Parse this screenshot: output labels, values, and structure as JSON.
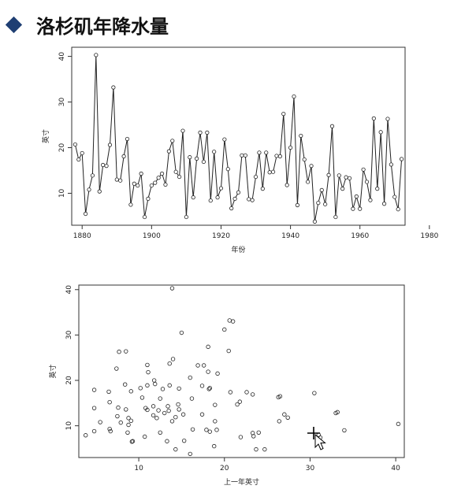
{
  "slide": {
    "title": "洛杉矶年降水量"
  },
  "chart_data": [
    {
      "type": "line",
      "title": "",
      "xlabel": "年份",
      "ylabel": "英寸",
      "xlim": [
        1877,
        1973
      ],
      "ylim": [
        3,
        42
      ],
      "xticks": [
        1880,
        1900,
        1920,
        1940,
        1960,
        1980
      ],
      "yticks": [
        10,
        20,
        30,
        40
      ],
      "grid": false,
      "series": [
        {
          "x": [
            1878,
            1879,
            1880,
            1881,
            1882,
            1883,
            1884,
            1885,
            1886,
            1887,
            1888,
            1889,
            1890,
            1891,
            1892,
            1893,
            1894,
            1895,
            1896,
            1897,
            1898,
            1899,
            1900,
            1901,
            1902,
            1903,
            1904,
            1905,
            1906,
            1907,
            1908,
            1909,
            1910,
            1911,
            1912,
            1913,
            1914,
            1915,
            1916,
            1917,
            1918,
            1919,
            1920,
            1921,
            1922,
            1923,
            1924,
            1925,
            1926,
            1927,
            1928,
            1929,
            1930,
            1931,
            1932,
            1933,
            1934,
            1935,
            1936,
            1937,
            1938,
            1939,
            1940,
            1941,
            1942,
            1943,
            1944,
            1945,
            1946,
            1947,
            1948,
            1949,
            1950,
            1951,
            1952,
            1953,
            1954,
            1955,
            1956,
            1957,
            1958,
            1959,
            1960,
            1961,
            1962,
            1963,
            1964,
            1965,
            1966,
            1967,
            1968,
            1969,
            1970,
            1971,
            1972
          ],
          "y": [
            20.7,
            17.4,
            18.8,
            5.5,
            10.8,
            13.9,
            40.3,
            10.4,
            16.2,
            16.0,
            20.6,
            33.2,
            13.0,
            12.8,
            18.1,
            21.9,
            7.5,
            12.1,
            11.7,
            14.3,
            4.8,
            8.8,
            11.7,
            12.3,
            13.4,
            14.3,
            11.9,
            19.2,
            21.5,
            14.7,
            13.6,
            23.7,
            4.8,
            17.9,
            9.1,
            17.6,
            23.3,
            16.9,
            23.3,
            8.4,
            19.1,
            9.1,
            11.1,
            21.8,
            15.3,
            6.7,
            8.8,
            10.2,
            18.3,
            18.3,
            8.7,
            8.5,
            13.6,
            18.9,
            11.0,
            18.9,
            14.6,
            14.7,
            18.2,
            18.1,
            27.4,
            11.8,
            20.0,
            31.2,
            7.4,
            22.6,
            17.4,
            12.5,
            16.0,
            3.8,
            7.9,
            10.7,
            7.6,
            14.0,
            24.7,
            4.8,
            13.9,
            11.0,
            13.5,
            13.3,
            6.6,
            9.3,
            6.6,
            15.2,
            12.5,
            8.5,
            26.4,
            11.0,
            23.4,
            7.7,
            26.3,
            16.3,
            9.2,
            6.5,
            17.5
          ]
        }
      ]
    },
    {
      "type": "scatter",
      "title": "",
      "xlabel": "上一年英寸",
      "ylabel": "英寸",
      "xlim": [
        3,
        41
      ],
      "ylim": [
        3,
        41
      ],
      "xticks": [
        10,
        20,
        30,
        40
      ],
      "yticks": [
        10,
        20,
        30,
        40
      ],
      "grid": false,
      "series": [
        {
          "points": [
            [
              20.7,
              17.4
            ],
            [
              17.4,
              18.8
            ],
            [
              18.8,
              5.5
            ],
            [
              5.5,
              10.8
            ],
            [
              10.8,
              13.9
            ],
            [
              13.9,
              40.3
            ],
            [
              40.3,
              10.4
            ],
            [
              10.4,
              16.2
            ],
            [
              16.2,
              16.0
            ],
            [
              16.0,
              20.6
            ],
            [
              20.6,
              33.2
            ],
            [
              33.2,
              13.0
            ],
            [
              13.0,
              12.8
            ],
            [
              12.8,
              18.1
            ],
            [
              18.1,
              21.9
            ],
            [
              21.9,
              7.5
            ],
            [
              7.5,
              12.1
            ],
            [
              12.1,
              11.7
            ],
            [
              11.7,
              14.3
            ],
            [
              14.3,
              4.8
            ],
            [
              4.8,
              8.8
            ],
            [
              8.8,
              11.7
            ],
            [
              11.7,
              12.3
            ],
            [
              12.3,
              13.4
            ],
            [
              13.4,
              14.3
            ],
            [
              14.3,
              11.9
            ],
            [
              11.9,
              19.2
            ],
            [
              19.2,
              21.5
            ],
            [
              21.5,
              14.7
            ],
            [
              14.7,
              13.6
            ],
            [
              13.6,
              23.7
            ],
            [
              23.7,
              4.8
            ],
            [
              4.8,
              17.9
            ],
            [
              17.9,
              9.1
            ],
            [
              9.1,
              17.6
            ],
            [
              17.6,
              23.3
            ],
            [
              23.3,
              16.9
            ],
            [
              16.9,
              23.3
            ],
            [
              23.3,
              8.4
            ],
            [
              8.4,
              19.1
            ],
            [
              19.1,
              9.1
            ],
            [
              9.1,
              11.1
            ],
            [
              11.1,
              21.8
            ],
            [
              21.8,
              15.3
            ],
            [
              15.3,
              6.7
            ],
            [
              6.7,
              8.8
            ],
            [
              8.8,
              10.2
            ],
            [
              10.2,
              18.3
            ],
            [
              18.3,
              18.3
            ],
            [
              18.3,
              8.7
            ],
            [
              8.7,
              8.5
            ],
            [
              8.5,
              13.6
            ],
            [
              13.6,
              18.9
            ],
            [
              18.9,
              11.0
            ],
            [
              11.0,
              18.9
            ],
            [
              18.9,
              14.6
            ],
            [
              14.6,
              14.7
            ],
            [
              14.7,
              18.2
            ],
            [
              18.2,
              18.1
            ],
            [
              18.1,
              27.4
            ],
            [
              27.4,
              11.8
            ],
            [
              11.8,
              20.0
            ],
            [
              20.0,
              31.2
            ],
            [
              31.2,
              7.4
            ],
            [
              7.4,
              22.6
            ],
            [
              22.6,
              17.4
            ],
            [
              17.4,
              12.5
            ],
            [
              12.5,
              16.0
            ],
            [
              16.0,
              3.8
            ],
            [
              3.8,
              7.9
            ],
            [
              7.9,
              10.7
            ],
            [
              10.7,
              7.6
            ],
            [
              7.6,
              14.0
            ],
            [
              14.0,
              24.7
            ],
            [
              24.7,
              4.8
            ],
            [
              4.8,
              13.9
            ],
            [
              13.9,
              11.0
            ],
            [
              11.0,
              13.5
            ],
            [
              13.5,
              13.3
            ],
            [
              13.3,
              6.6
            ],
            [
              6.6,
              9.3
            ],
            [
              9.3,
              6.6
            ],
            [
              6.6,
              15.2
            ],
            [
              15.2,
              12.5
            ],
            [
              12.5,
              8.5
            ],
            [
              8.5,
              26.4
            ],
            [
              26.4,
              11.0
            ],
            [
              11.0,
              23.4
            ],
            [
              23.4,
              7.7
            ],
            [
              7.7,
              26.3
            ],
            [
              26.3,
              16.3
            ],
            [
              16.3,
              9.2
            ],
            [
              9.2,
              6.5
            ],
            [
              6.5,
              17.5
            ],
            [
              30.5,
              17.2
            ],
            [
              33.0,
              12.8
            ],
            [
              34.0,
              9.0
            ],
            [
              27.0,
              12.5
            ],
            [
              26.5,
              16.5
            ],
            [
              31.0,
              8.0
            ],
            [
              24.0,
              8.5
            ],
            [
              20.5,
              26.5
            ],
            [
              21.0,
              33.0
            ],
            [
              15.0,
              30.5
            ]
          ]
        }
      ]
    }
  ]
}
